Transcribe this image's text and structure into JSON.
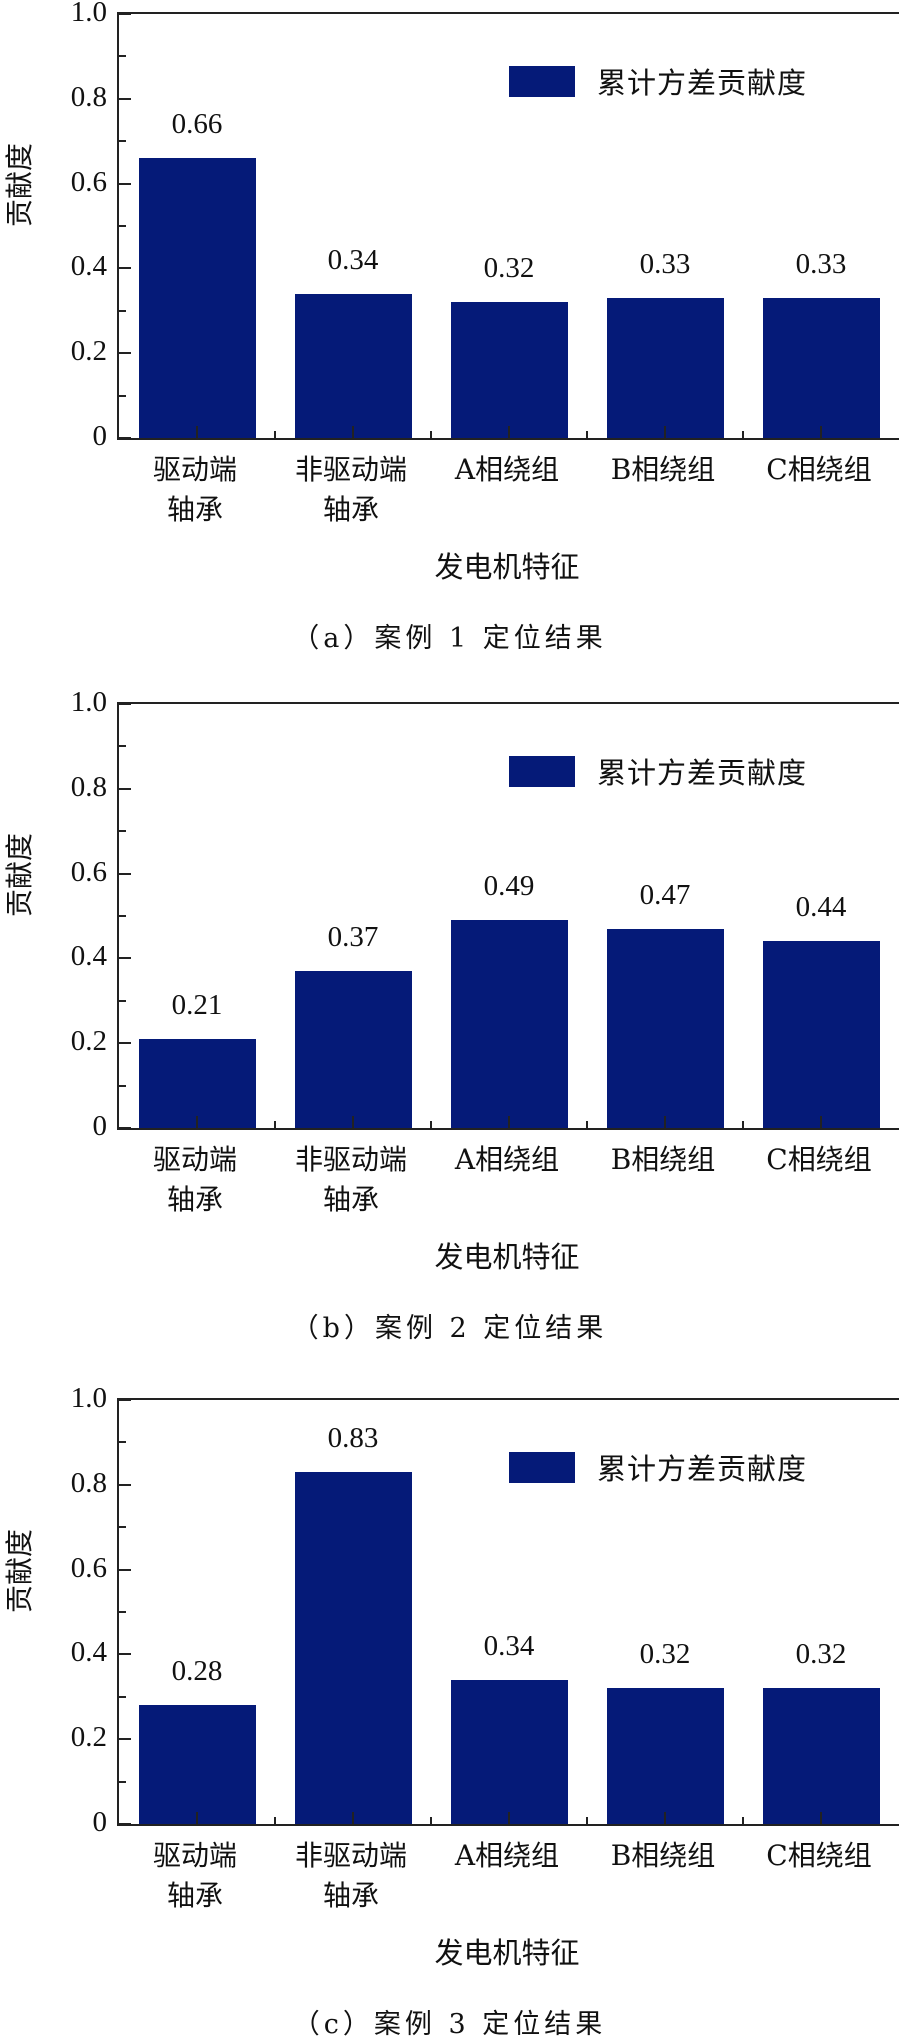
{
  "chart_data": [
    {
      "type": "bar",
      "id": "a",
      "title": "",
      "caption": "（a）案例 1 定位结果",
      "xlabel": "发电机特征",
      "ylabel": "贡献度",
      "categories": [
        "驱动端\n轴承",
        "非驱动端\n轴承",
        "A相绕组",
        "B相绕组",
        "C相绕组"
      ],
      "series": [
        {
          "name": "累计方差贡献度",
          "values": [
            0.66,
            0.34,
            0.32,
            0.33,
            0.33
          ],
          "color": "#051a78"
        }
      ],
      "value_labels": [
        "0.66",
        "0.34",
        "0.32",
        "0.33",
        "0.33"
      ],
      "ylim": [
        0,
        1.0
      ],
      "yticks": [
        "0",
        "0.2",
        "0.4",
        "0.6",
        "0.8",
        "1.0"
      ],
      "grid": false,
      "legend_position": "upper right"
    },
    {
      "type": "bar",
      "id": "b",
      "title": "",
      "caption": "（b）案例 2 定位结果",
      "xlabel": "发电机特征",
      "ylabel": "贡献度",
      "categories": [
        "驱动端\n轴承",
        "非驱动端\n轴承",
        "A相绕组",
        "B相绕组",
        "C相绕组"
      ],
      "series": [
        {
          "name": "累计方差贡献度",
          "values": [
            0.21,
            0.37,
            0.49,
            0.47,
            0.44
          ],
          "color": "#051a78"
        }
      ],
      "value_labels": [
        "0.21",
        "0.37",
        "0.49",
        "0.47",
        "0.44"
      ],
      "ylim": [
        0,
        1.0
      ],
      "yticks": [
        "0",
        "0.2",
        "0.4",
        "0.6",
        "0.8",
        "1.0"
      ],
      "grid": false,
      "legend_position": "upper right"
    },
    {
      "type": "bar",
      "id": "c",
      "title": "",
      "caption": "（c）案例 3 定位结果",
      "xlabel": "发电机特征",
      "ylabel": "贡献度",
      "categories": [
        "驱动端\n轴承",
        "非驱动端\n轴承",
        "A相绕组",
        "B相绕组",
        "C相绕组"
      ],
      "series": [
        {
          "name": "累计方差贡献度",
          "values": [
            0.28,
            0.83,
            0.34,
            0.32,
            0.32
          ],
          "color": "#051a78"
        }
      ],
      "value_labels": [
        "0.28",
        "0.83",
        "0.34",
        "0.32",
        "0.32"
      ],
      "ylim": [
        0,
        1.0
      ],
      "yticks": [
        "0",
        "0.2",
        "0.4",
        "0.6",
        "0.8",
        "1.0"
      ],
      "grid": false,
      "legend_position": "upper right"
    }
  ]
}
